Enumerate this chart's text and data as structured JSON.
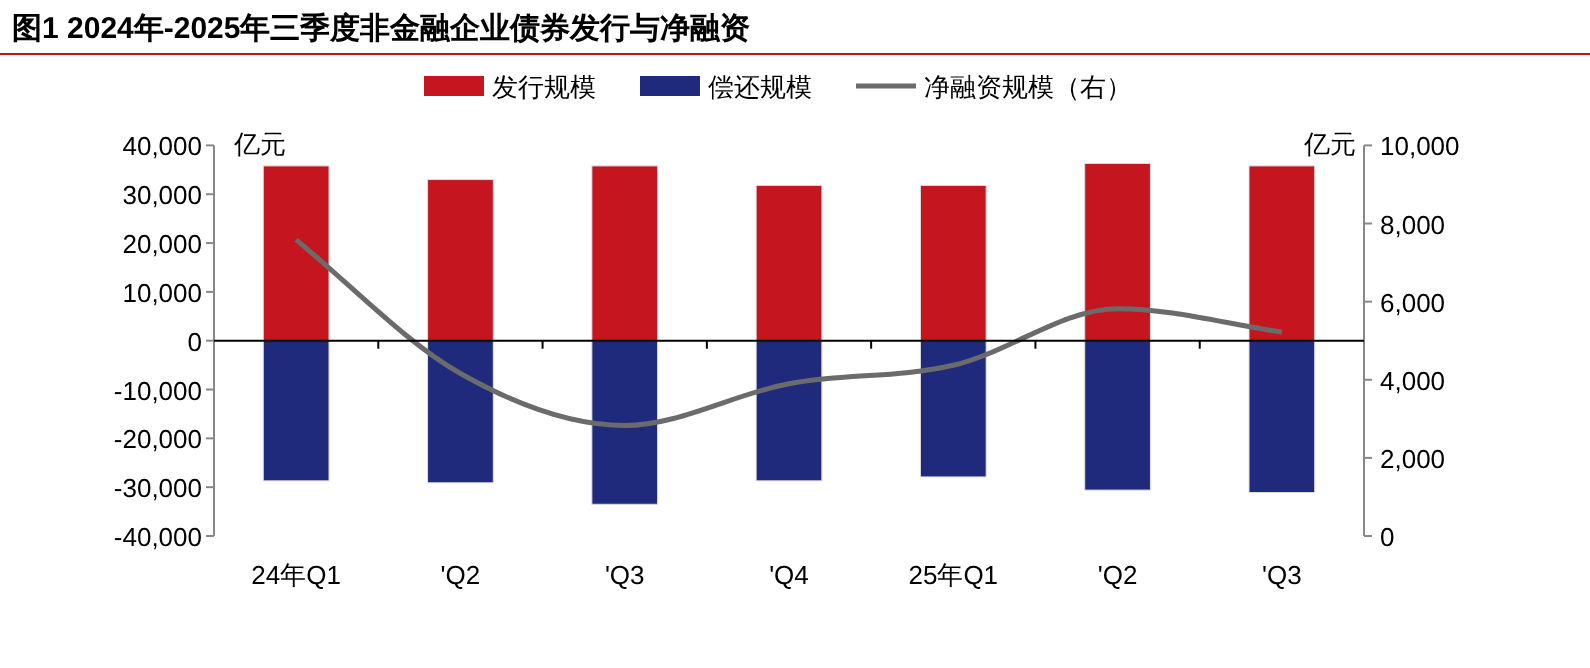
{
  "chart_data": {
    "type": "bar",
    "title": "图1    2024年-2025年三季度非金融企业债券发行与净融资",
    "ylabel": "亿元",
    "y2label": "亿元",
    "categories": [
      "24年Q1",
      "'Q2",
      "'Q3",
      "'Q4",
      "25年Q1",
      "'Q2",
      "'Q3"
    ],
    "series": [
      {
        "name": "发行规模",
        "color": "#c5161f",
        "values": [
          35800,
          33000,
          35800,
          31800,
          31800,
          36300,
          35800
        ]
      },
      {
        "name": "偿还规模",
        "color": "#1f2a7c",
        "values": [
          -28700,
          -29100,
          -33500,
          -28700,
          -27900,
          -30600,
          -31100
        ]
      },
      {
        "name": "净融资规模（右）",
        "type": "line",
        "axis": "y2",
        "color": "#6b6b6b",
        "values": [
          7580,
          4160,
          2830,
          3900,
          4370,
          5820,
          5220
        ]
      }
    ],
    "ylim": [
      -40000,
      40000
    ],
    "yticks": [
      {
        "value": -40000,
        "label": "-40,000"
      },
      {
        "value": -30000,
        "label": "-30,000"
      },
      {
        "value": -20000,
        "label": "-20,000"
      },
      {
        "value": -10000,
        "label": "-10,000"
      },
      0,
      {
        "value": 10000,
        "label": "10,000"
      },
      {
        "value": 20000,
        "label": "20,000"
      },
      {
        "value": 30000,
        "label": "30,000"
      },
      {
        "value": 40000,
        "label": "40,000"
      }
    ],
    "y2lim": [
      0,
      10000
    ],
    "y2ticks": [
      0,
      {
        "value": 2000,
        "label": "2,000"
      },
      {
        "value": 4000,
        "label": "4,000"
      },
      {
        "value": 6000,
        "label": "6,000"
      },
      {
        "value": 8000,
        "label": "8,000"
      },
      {
        "value": 10000,
        "label": "10,000"
      }
    ],
    "stacked": true,
    "legend": "top",
    "marker": "none",
    "line_style": "solid"
  }
}
